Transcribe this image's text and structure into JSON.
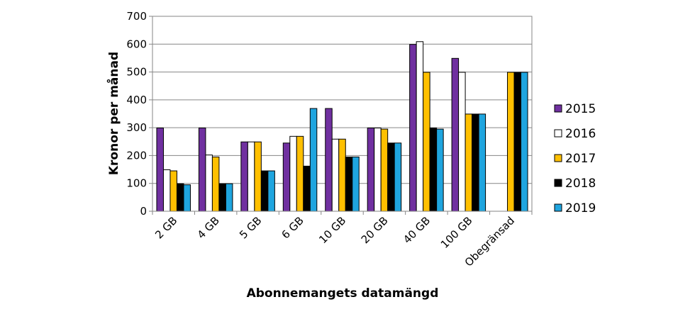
{
  "chart_data": {
    "type": "bar",
    "title": "",
    "xlabel": "Abonnemangets datamängd",
    "ylabel": "Kronor per månad",
    "ylim": [
      0,
      700
    ],
    "yticks": [
      0,
      100,
      200,
      300,
      400,
      500,
      600,
      700
    ],
    "grid": "horizontal",
    "legend_position": "right",
    "categories": [
      "2 GB",
      "4 GB",
      "5 GB",
      "6 GB",
      "10 GB",
      "20 GB",
      "40 GB",
      "100 GB",
      "Obegränsad"
    ],
    "series": [
      {
        "name": "2015",
        "color": "#7030A0",
        "values": [
          299,
          299,
          249,
          245,
          369,
          299,
          599,
          549,
          null
        ]
      },
      {
        "name": "2016",
        "color": "#FFFFFF",
        "values": [
          149,
          202,
          249,
          269,
          259,
          299,
          609,
          499,
          null
        ]
      },
      {
        "name": "2017",
        "color": "#FFC000",
        "values": [
          145,
          195,
          249,
          269,
          259,
          295,
          499,
          349,
          499
        ]
      },
      {
        "name": "2018",
        "color": "#000000",
        "values": [
          99,
          99,
          145,
          162,
          195,
          245,
          299,
          349,
          499
        ]
      },
      {
        "name": "2019",
        "color": "#1FA5DF",
        "values": [
          95,
          99,
          145,
          369,
          195,
          245,
          295,
          349,
          499
        ]
      }
    ]
  }
}
